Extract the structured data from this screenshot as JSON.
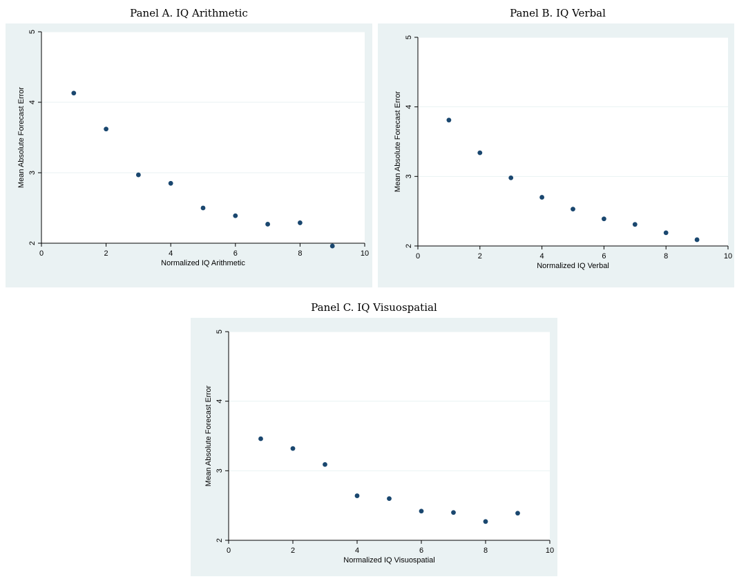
{
  "chart_data": [
    {
      "type": "scatter",
      "title": "Panel A. IQ Arithmetic",
      "xlabel": "Normalized IQ Arithmetic",
      "ylabel": "Mean Absolute Forecast Error",
      "xlim": [
        0,
        10
      ],
      "ylim": [
        2,
        5
      ],
      "xticks": [
        0,
        2,
        4,
        6,
        8,
        10
      ],
      "yticks": [
        2,
        3,
        4,
        5
      ],
      "grid": true,
      "marker_color": "#1a476f",
      "x": [
        1,
        2,
        3,
        4,
        5,
        6,
        7,
        8,
        9
      ],
      "y": [
        4.13,
        3.62,
        2.97,
        2.85,
        2.5,
        2.39,
        2.27,
        2.29,
        1.96
      ]
    },
    {
      "type": "scatter",
      "title": "Panel B. IQ Verbal",
      "xlabel": "Normalized IQ Verbal",
      "ylabel": "Mean Absolute Forecast Error",
      "xlim": [
        0,
        10
      ],
      "ylim": [
        2,
        5
      ],
      "xticks": [
        0,
        2,
        4,
        6,
        8,
        10
      ],
      "yticks": [
        2,
        3,
        4,
        5
      ],
      "grid": true,
      "marker_color": "#1a476f",
      "x": [
        1,
        2,
        3,
        4,
        5,
        6,
        7,
        8,
        9
      ],
      "y": [
        3.81,
        3.34,
        2.98,
        2.7,
        2.53,
        2.39,
        2.31,
        2.19,
        2.09
      ]
    },
    {
      "type": "scatter",
      "title": "Panel C. IQ Visuospatial",
      "xlabel": "Normalized IQ Visuospatial",
      "ylabel": "Mean Absolute Forecast Error",
      "xlim": [
        0,
        10
      ],
      "ylim": [
        2,
        5
      ],
      "xticks": [
        0,
        2,
        4,
        6,
        8,
        10
      ],
      "yticks": [
        2,
        3,
        4,
        5
      ],
      "grid": true,
      "marker_color": "#1a476f",
      "x": [
        1,
        2,
        3,
        4,
        5,
        6,
        7,
        8,
        9
      ],
      "y": [
        3.46,
        3.32,
        3.09,
        2.64,
        2.6,
        2.42,
        2.4,
        2.27,
        2.39
      ]
    }
  ],
  "colors": {
    "frame_background": "#eaf2f3",
    "plot_background": "#ffffff",
    "gridline": "#eaf2f3",
    "marker": "#1a476f"
  }
}
